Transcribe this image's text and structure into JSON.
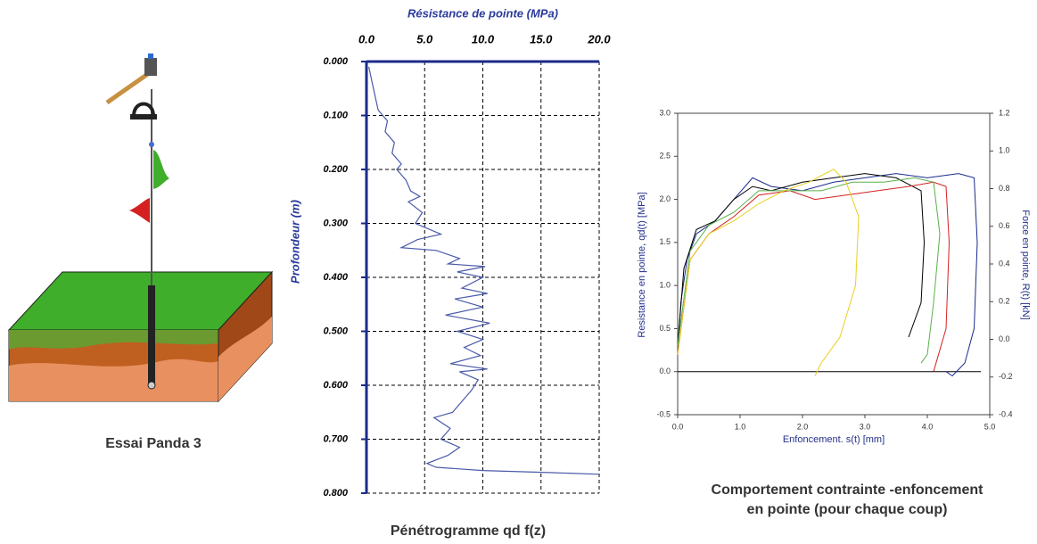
{
  "illustration": {
    "caption": "Essai Panda 3"
  },
  "chart_data": [
    {
      "type": "line",
      "title": "Pénétrogramme qd f(z)",
      "x_label": "Résistance de pointe (MPa)",
      "y_label": "Profondeur (m)",
      "xlim": [
        0,
        20
      ],
      "xticks": [
        {
          "value": 0,
          "label": "0.0"
        },
        {
          "value": 5,
          "label": "5.0"
        },
        {
          "value": 10,
          "label": "10.0"
        },
        {
          "value": 15,
          "label": "15.0"
        },
        {
          "value": 20,
          "label": "20.0"
        }
      ],
      "ylim": [
        0,
        0.8
      ],
      "y_inverted": true,
      "yticks": [
        {
          "value": 0,
          "label": "0.000"
        },
        {
          "value": 0.1,
          "label": "0.100"
        },
        {
          "value": 0.2,
          "label": "0.200"
        },
        {
          "value": 0.3,
          "label": "0.300"
        },
        {
          "value": 0.4,
          "label": "0.400"
        },
        {
          "value": 0.5,
          "label": "0.500"
        },
        {
          "value": 0.6,
          "label": "0.600"
        },
        {
          "value": 0.7,
          "label": "0.700"
        },
        {
          "value": 0.8,
          "label": "0.800"
        }
      ],
      "grid": true,
      "series": [
        {
          "color": "#4a5aa8",
          "x": [
            0.2,
            0.6,
            1.0,
            1.8,
            1.6,
            2.4,
            2.2,
            3.0,
            2.6,
            3.4,
            3.8,
            4.6,
            3.6,
            4.8,
            4.2,
            6.4,
            4.4,
            3.0,
            6.0,
            8.0,
            7.0,
            10.2,
            7.8,
            10.0,
            8.2,
            10.4,
            7.6,
            10.0,
            6.8,
            10.6,
            7.8,
            10.0,
            8.4,
            9.8,
            7.2,
            10.4,
            8.0,
            9.6,
            9.0,
            8.2,
            7.4,
            5.8,
            7.2,
            6.4,
            8.0,
            7.0,
            5.2,
            6.0,
            10.0,
            16.0,
            20.0
          ],
          "values": [
            0.01,
            0.05,
            0.09,
            0.11,
            0.13,
            0.15,
            0.17,
            0.19,
            0.2,
            0.22,
            0.24,
            0.25,
            0.26,
            0.28,
            0.3,
            0.32,
            0.33,
            0.345,
            0.35,
            0.365,
            0.375,
            0.38,
            0.39,
            0.4,
            0.42,
            0.43,
            0.44,
            0.455,
            0.47,
            0.485,
            0.5,
            0.515,
            0.53,
            0.545,
            0.56,
            0.57,
            0.575,
            0.59,
            0.61,
            0.63,
            0.65,
            0.66,
            0.68,
            0.7,
            0.715,
            0.73,
            0.745,
            0.752,
            0.758,
            0.762,
            0.765
          ]
        }
      ]
    },
    {
      "type": "line",
      "title": [
        "Comportement contrainte -enfoncement",
        "en pointe (pour chaque coup)"
      ],
      "x_label": "Enfoncement. s(t) [mm]",
      "y_label": "Resistance en pointe, qd(t) [MPa]",
      "y2_label": "Force en pointe, R(t) [kN]",
      "xlim": [
        0,
        5
      ],
      "xticks": [
        {
          "value": 0,
          "label": "0.0"
        },
        {
          "value": 1,
          "label": "1.0"
        },
        {
          "value": 2,
          "label": "2.0"
        },
        {
          "value": 3,
          "label": "3.0"
        },
        {
          "value": 4,
          "label": "4.0"
        },
        {
          "value": 5,
          "label": "5.0"
        }
      ],
      "ylim": [
        -0.5,
        3
      ],
      "yticks": [
        -0.5,
        {
          "value": 0,
          "label": "0.0"
        },
        0.5,
        {
          "value": 1,
          "label": "1.0"
        },
        1.5,
        {
          "value": 2,
          "label": "2.0"
        },
        2.5,
        {
          "value": 3,
          "label": "3.0"
        }
      ],
      "y2lim": [
        -0.4,
        1.2
      ],
      "y2ticks": [
        -0.4,
        -0.2,
        {
          "value": 0,
          "label": "0.0"
        },
        0.2,
        0.4,
        0.6,
        0.8,
        {
          "value": 1,
          "label": "1.0"
        },
        1.2
      ],
      "series": [
        {
          "color": "#1a2a8a",
          "x": [
            0,
            0.05,
            0.15,
            0.3,
            0.6,
            0.9,
            1.2,
            1.5,
            2.0,
            2.5,
            3.0,
            3.5,
            4.0,
            4.5,
            4.75,
            4.8,
            4.75,
            4.6,
            4.4,
            4.3
          ],
          "values": [
            0.2,
            0.8,
            1.3,
            1.6,
            1.75,
            2.0,
            2.25,
            2.15,
            2.1,
            2.2,
            2.25,
            2.3,
            2.25,
            2.3,
            2.25,
            1.5,
            0.5,
            0.1,
            -0.05,
            0.0
          ]
        },
        {
          "color": "#000000",
          "x": [
            0,
            0.1,
            0.3,
            0.6,
            0.9,
            1.2,
            1.5,
            2.0,
            2.5,
            3.0,
            3.5,
            3.9,
            3.95,
            3.9,
            3.7
          ],
          "values": [
            0.3,
            1.2,
            1.65,
            1.75,
            2.0,
            2.15,
            2.1,
            2.2,
            2.25,
            2.3,
            2.25,
            2.1,
            1.5,
            0.8,
            0.4
          ]
        },
        {
          "color": "#d42020",
          "x": [
            0,
            0.2,
            0.5,
            0.9,
            1.3,
            1.8,
            2.2,
            2.7,
            3.2,
            3.7,
            4.1,
            4.3,
            4.35,
            4.3,
            4.1
          ],
          "values": [
            0.2,
            1.3,
            1.6,
            1.8,
            2.05,
            2.1,
            2.0,
            2.05,
            2.1,
            2.15,
            2.2,
            2.15,
            1.5,
            0.5,
            0.0
          ]
        },
        {
          "color": "#5ab04a",
          "x": [
            0,
            0.2,
            0.5,
            0.9,
            1.3,
            1.8,
            2.3,
            2.8,
            3.3,
            3.8,
            4.1,
            4.2,
            4.1,
            4.0,
            3.9
          ],
          "values": [
            0.3,
            1.4,
            1.7,
            1.85,
            2.1,
            2.1,
            2.1,
            2.2,
            2.2,
            2.25,
            2.2,
            1.6,
            0.8,
            0.2,
            0.1
          ]
        },
        {
          "color": "#e8d020",
          "x": [
            0,
            0.2,
            0.5,
            0.9,
            1.3,
            1.7,
            2.1,
            2.5,
            2.7,
            2.9,
            2.85,
            2.6,
            2.3,
            2.2
          ],
          "values": [
            0.2,
            1.3,
            1.6,
            1.75,
            1.95,
            2.1,
            2.2,
            2.35,
            2.2,
            1.8,
            1.0,
            0.4,
            0.1,
            -0.05
          ]
        }
      ]
    }
  ]
}
